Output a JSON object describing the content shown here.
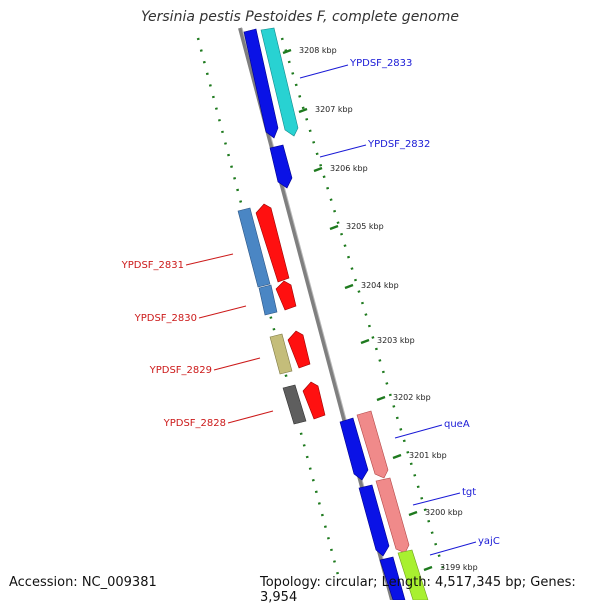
{
  "title": "Yersinia pestis Pestoides F, complete genome",
  "accession": "Accession: NC_009381",
  "topology": "Topology: circular; Length: 4,517,345 bp; Genes: 3,954",
  "colors": {
    "backbone": "#7f7f7f",
    "tick": "#1e7a1e",
    "forward_label": "#1a1ad6",
    "reverse_label": "#cc1a1a"
  },
  "ticks": [
    {
      "label": "3208 kbp"
    },
    {
      "label": "3207 kbp"
    },
    {
      "label": "3206 kbp"
    },
    {
      "label": "3205 kbp"
    },
    {
      "label": "3204 kbp"
    },
    {
      "label": "3203 kbp"
    },
    {
      "label": "3202 kbp"
    },
    {
      "label": "3201 kbp"
    },
    {
      "label": "3200 kbp"
    },
    {
      "label": "3199 kbp"
    }
  ],
  "gene_labels": [
    {
      "name": "YPDSF_2833",
      "strand": "forward"
    },
    {
      "name": "YPDSF_2832",
      "strand": "forward"
    },
    {
      "name": "queA",
      "strand": "forward"
    },
    {
      "name": "tgt",
      "strand": "forward"
    },
    {
      "name": "yajC",
      "strand": "forward"
    },
    {
      "name": "YPDSF_2831",
      "strand": "reverse"
    },
    {
      "name": "YPDSF_2830",
      "strand": "reverse"
    },
    {
      "name": "YPDSF_2829",
      "strand": "reverse"
    },
    {
      "name": "YPDSF_2828",
      "strand": "reverse"
    }
  ]
}
